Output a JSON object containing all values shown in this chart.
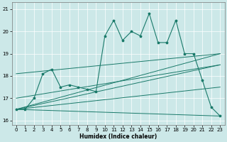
{
  "xlabel": "Humidex (Indice chaleur)",
  "xlim": [
    -0.5,
    23.5
  ],
  "ylim": [
    15.8,
    21.3
  ],
  "yticks": [
    16,
    17,
    18,
    19,
    20,
    21
  ],
  "xticks": [
    0,
    1,
    2,
    3,
    4,
    5,
    6,
    7,
    8,
    9,
    10,
    11,
    12,
    13,
    14,
    15,
    16,
    17,
    18,
    19,
    20,
    21,
    22,
    23
  ],
  "bg_color": "#cce8e8",
  "grid_color": "#ffffff",
  "line_color": "#1a7a6a",
  "main_x": [
    0,
    1,
    2,
    3,
    4,
    5,
    6,
    7,
    8,
    9,
    10,
    11,
    12,
    13,
    14,
    15,
    16,
    17,
    18,
    19,
    20,
    21,
    22,
    23
  ],
  "main_y": [
    16.5,
    16.5,
    17.0,
    18.1,
    18.3,
    17.5,
    17.6,
    17.5,
    17.4,
    17.3,
    19.8,
    20.5,
    19.6,
    20.0,
    19.8,
    20.8,
    19.5,
    19.5,
    20.5,
    19.0,
    19.0,
    17.8,
    16.6,
    16.2
  ],
  "trend_lines": [
    {
      "x": [
        0,
        23
      ],
      "y": [
        16.5,
        19.0
      ]
    },
    {
      "x": [
        0,
        23
      ],
      "y": [
        16.5,
        18.5
      ]
    },
    {
      "x": [
        0,
        23
      ],
      "y": [
        16.5,
        17.5
      ]
    },
    {
      "x": [
        0,
        23
      ],
      "y": [
        16.5,
        16.2
      ]
    },
    {
      "x": [
        0,
        23
      ],
      "y": [
        18.1,
        19.0
      ]
    },
    {
      "x": [
        0,
        23
      ],
      "y": [
        17.0,
        18.5
      ]
    }
  ]
}
